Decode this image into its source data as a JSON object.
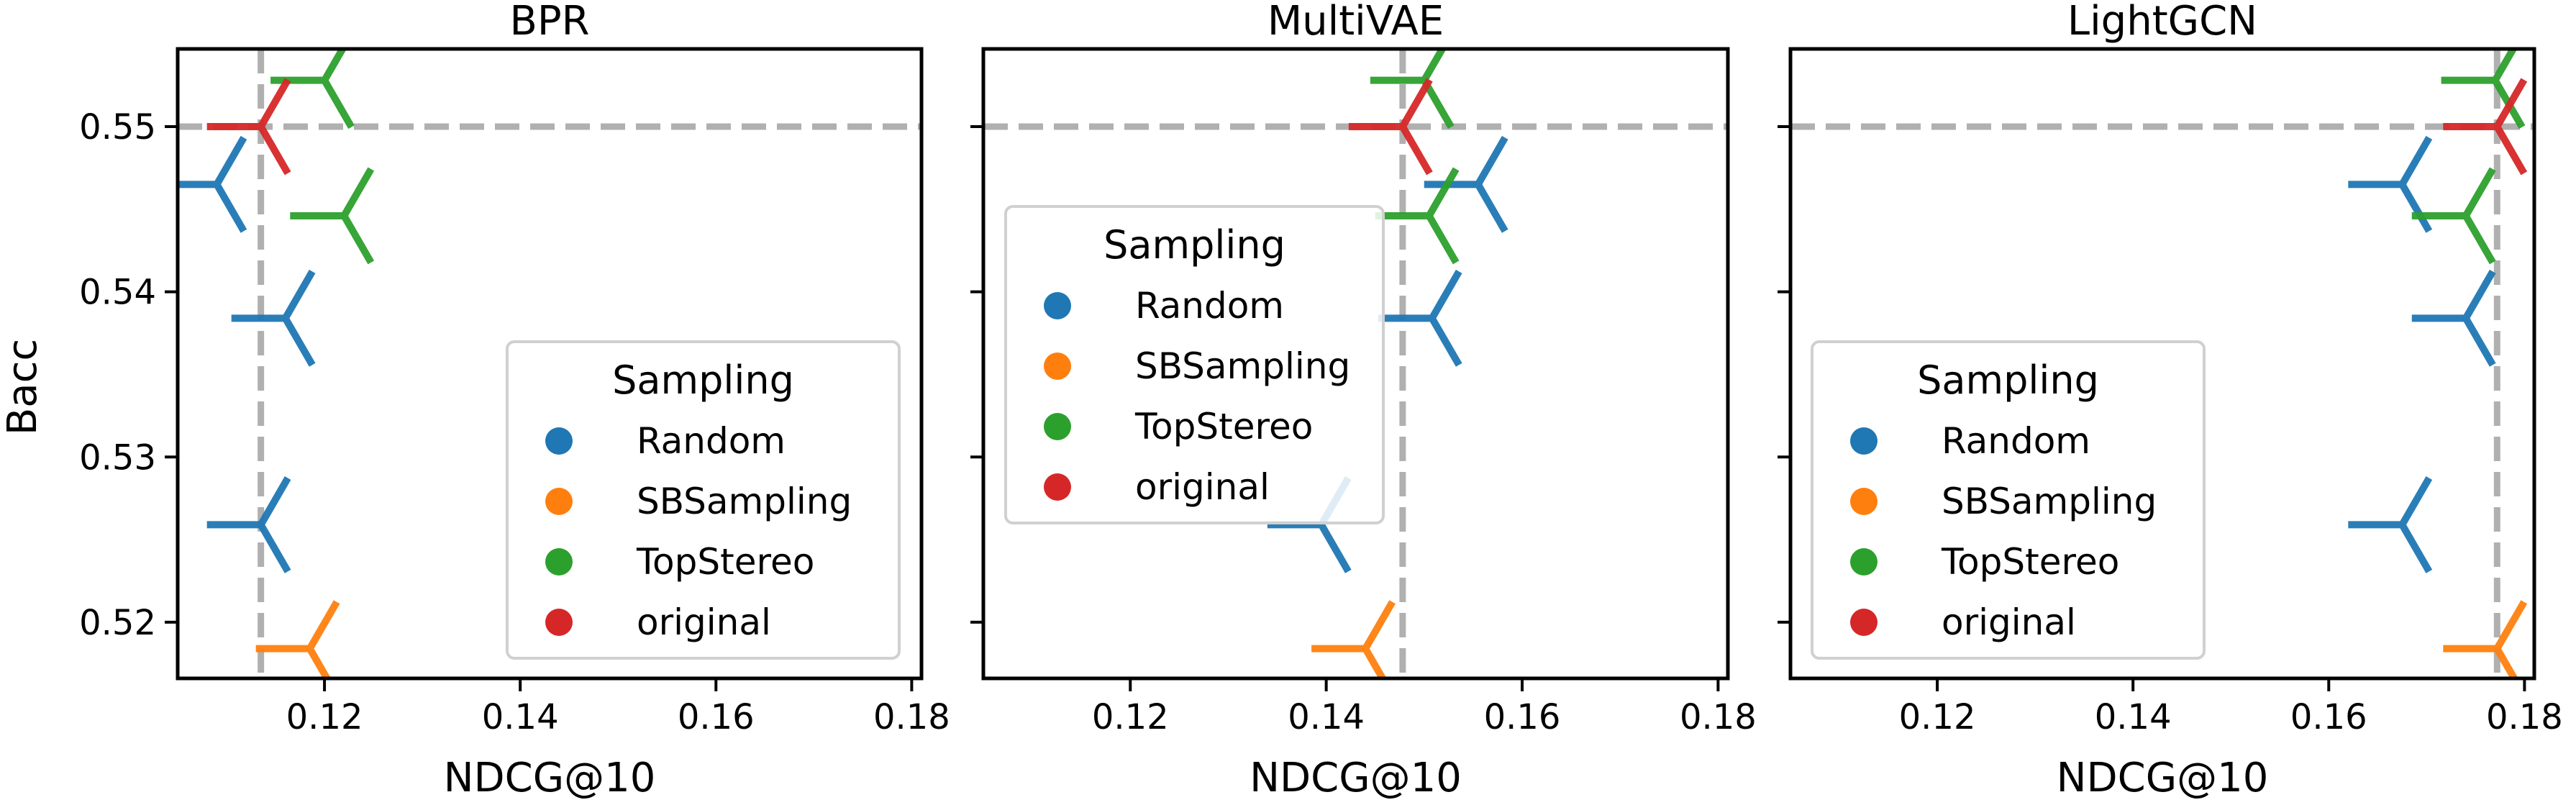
{
  "figure": {
    "ylabel": "Bacc",
    "colors": {
      "Random": "#1f77b4",
      "SBSampling": "#ff7f0e",
      "TopStereo": "#2ca02c",
      "original": "#d62728",
      "reference": "#b0b0b0"
    }
  },
  "chart_data": [
    {
      "type": "scatter",
      "title": "BPR",
      "xlabel": "NDCG@10",
      "ylabel": "Bacc",
      "xlim": [
        0.105,
        0.181
      ],
      "ylim": [
        0.5166,
        0.5547
      ],
      "xticks": [
        "0.12",
        "0.14",
        "0.16",
        "0.18"
      ],
      "yticks": [
        "0.52",
        "0.53",
        "0.54",
        "0.55"
      ],
      "reference_lines": {
        "x": 0.1135,
        "y": 0.55
      },
      "legend": {
        "title": "Sampling",
        "placement": "lower-right",
        "entries": [
          "Random",
          "SBSampling",
          "TopStereo",
          "original"
        ]
      },
      "series": [
        {
          "name": "Random",
          "points": [
            [
              0.109,
              0.5465
            ],
            [
              0.116,
              0.5384
            ],
            [
              0.1135,
              0.5259
            ]
          ]
        },
        {
          "name": "SBSampling",
          "points": [
            [
              0.1185,
              0.5184
            ]
          ]
        },
        {
          "name": "TopStereo",
          "points": [
            [
              0.12,
              0.5528
            ],
            [
              0.122,
              0.5446
            ]
          ]
        },
        {
          "name": "original",
          "points": [
            [
              0.1135,
              0.55
            ]
          ]
        }
      ]
    },
    {
      "type": "scatter",
      "title": "MultiVAE",
      "xlabel": "NDCG@10",
      "ylabel": "",
      "xlim": [
        0.105,
        0.181
      ],
      "ylim": [
        0.5166,
        0.5547
      ],
      "xticks": [
        "0.12",
        "0.14",
        "0.16",
        "0.18"
      ],
      "yticks": [],
      "reference_lines": {
        "x": 0.1478,
        "y": 0.55
      },
      "legend": {
        "title": "Sampling",
        "placement": "center-left",
        "entries": [
          "Random",
          "SBSampling",
          "TopStereo",
          "original"
        ]
      },
      "series": [
        {
          "name": "Random",
          "points": [
            [
              0.1555,
              0.5465
            ],
            [
              0.1508,
              0.5384
            ],
            [
              0.1395,
              0.5259
            ]
          ]
        },
        {
          "name": "SBSampling",
          "points": [
            [
              0.144,
              0.5184
            ]
          ]
        },
        {
          "name": "TopStereo",
          "points": [
            [
              0.15,
              0.5528
            ],
            [
              0.1505,
              0.5446
            ]
          ]
        },
        {
          "name": "original",
          "points": [
            [
              0.1478,
              0.55
            ]
          ]
        }
      ]
    },
    {
      "type": "scatter",
      "title": "LightGCN",
      "xlabel": "NDCG@10",
      "ylabel": "",
      "xlim": [
        0.105,
        0.181
      ],
      "ylim": [
        0.5166,
        0.5547
      ],
      "xticks": [
        "0.12",
        "0.14",
        "0.16",
        "0.18"
      ],
      "yticks": [],
      "reference_lines": {
        "x": 0.1772,
        "y": 0.55
      },
      "legend": {
        "title": "Sampling",
        "placement": "lower-left",
        "entries": [
          "Random",
          "SBSampling",
          "TopStereo",
          "original"
        ]
      },
      "series": [
        {
          "name": "Random",
          "points": [
            [
              0.1675,
              0.5465
            ],
            [
              0.174,
              0.5384
            ],
            [
              0.1675,
              0.5259
            ]
          ]
        },
        {
          "name": "SBSampling",
          "points": [
            [
              0.1772,
              0.5184
            ]
          ]
        },
        {
          "name": "TopStereo",
          "points": [
            [
              0.177,
              0.5528
            ],
            [
              0.174,
              0.5446
            ]
          ]
        },
        {
          "name": "original",
          "points": [
            [
              0.1772,
              0.55
            ]
          ]
        }
      ]
    }
  ]
}
